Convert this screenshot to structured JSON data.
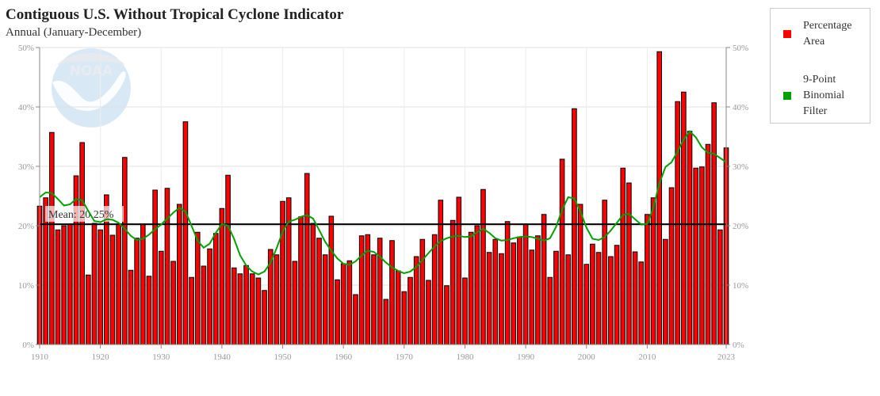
{
  "header": {
    "title": "Contiguous U.S. Without Tropical Cyclone Indicator",
    "subtitle": "Annual (January-December)"
  },
  "legend": {
    "items": [
      {
        "label": "Percentage Area",
        "color": "#ff0000"
      },
      {
        "label": "9-Point Binomial Filter",
        "color": "#00a000"
      }
    ]
  },
  "mean": {
    "label": "Mean: 20.25%",
    "value": 20.25
  },
  "watermark": {
    "text": "NOAA"
  },
  "chart_data": {
    "type": "bar",
    "title": "Contiguous U.S. Without Tropical Cyclone Indicator",
    "subtitle": "Annual (January-December)",
    "xlabel": "",
    "ylabel": "",
    "ylim": [
      0,
      50
    ],
    "xlim": [
      1910,
      2023
    ],
    "y_ticks": [
      "0%",
      "10%",
      "20%",
      "30%",
      "40%",
      "50%"
    ],
    "x_ticks": [
      "1910",
      "1920",
      "1930",
      "1940",
      "1950",
      "1960",
      "1970",
      "1980",
      "1990",
      "2000",
      "2010",
      "2023"
    ],
    "grid": true,
    "legend_position": "right",
    "mean": 20.25,
    "x": [
      1910,
      1911,
      1912,
      1913,
      1914,
      1915,
      1916,
      1917,
      1918,
      1919,
      1920,
      1921,
      1922,
      1923,
      1924,
      1925,
      1926,
      1927,
      1928,
      1929,
      1930,
      1931,
      1932,
      1933,
      1934,
      1935,
      1936,
      1937,
      1938,
      1939,
      1940,
      1941,
      1942,
      1943,
      1944,
      1945,
      1946,
      1947,
      1948,
      1949,
      1950,
      1951,
      1952,
      1953,
      1954,
      1955,
      1956,
      1957,
      1958,
      1959,
      1960,
      1961,
      1962,
      1963,
      1964,
      1965,
      1966,
      1967,
      1968,
      1969,
      1970,
      1971,
      1972,
      1973,
      1974,
      1975,
      1976,
      1977,
      1978,
      1979,
      1980,
      1981,
      1982,
      1983,
      1984,
      1985,
      1986,
      1987,
      1988,
      1989,
      1990,
      1991,
      1992,
      1993,
      1994,
      1995,
      1996,
      1997,
      1998,
      1999,
      2000,
      2001,
      2002,
      2003,
      2004,
      2005,
      2006,
      2007,
      2008,
      2009,
      2010,
      2011,
      2012,
      2013,
      2014,
      2015,
      2016,
      2017,
      2018,
      2019,
      2020,
      2021,
      2022,
      2023
    ],
    "series": [
      {
        "name": "Percentage Area",
        "type": "bar",
        "color": "#ff0000",
        "values": [
          23.3,
          24.7,
          35.7,
          19.3,
          20.0,
          20.3,
          28.4,
          34.0,
          11.7,
          20.4,
          19.3,
          25.2,
          18.4,
          20.3,
          31.5,
          12.5,
          17.9,
          20.3,
          11.5,
          26.0,
          15.7,
          26.3,
          14.0,
          23.6,
          37.5,
          11.3,
          18.9,
          13.2,
          16.1,
          18.7,
          22.9,
          28.5,
          12.9,
          11.9,
          13.3,
          11.9,
          11.2,
          9.1,
          16.0,
          15.1,
          24.1,
          24.7,
          14.0,
          21.5,
          28.8,
          20.4,
          17.9,
          15.1,
          21.6,
          10.9,
          13.6,
          14.1,
          8.4,
          18.3,
          18.5,
          15.1,
          17.9,
          7.6,
          17.5,
          12.4,
          8.9,
          11.3,
          14.8,
          17.7,
          10.8,
          18.5,
          24.3,
          9.9,
          20.9,
          24.8,
          11.2,
          18.9,
          20.0,
          26.1,
          15.5,
          17.7,
          15.3,
          20.7,
          17.1,
          18.1,
          20.3,
          15.9,
          18.3,
          21.9,
          11.3,
          15.7,
          31.2,
          15.1,
          39.7,
          23.6,
          13.5,
          16.9,
          15.5,
          24.3,
          14.8,
          16.7,
          29.7,
          27.2,
          15.6,
          13.9,
          21.9,
          24.7,
          49.3,
          17.7,
          26.4,
          40.9,
          42.5,
          35.9,
          29.7,
          29.9,
          33.7,
          40.7,
          19.3,
          33.1
        ]
      },
      {
        "name": "9-Point Binomial Filter",
        "type": "line",
        "color": "#00a000",
        "values": [
          24.8,
          25.6,
          25.5,
          24.5,
          23.4,
          23.6,
          24.5,
          24.3,
          22.5,
          20.8,
          20.6,
          21.1,
          21.0,
          20.5,
          19.5,
          18.3,
          17.6,
          17.8,
          18.5,
          19.4,
          20.2,
          21.2,
          22.2,
          23.0,
          22.4,
          20.0,
          17.5,
          16.3,
          17.0,
          18.8,
          20.3,
          20.0,
          17.8,
          15.0,
          13.3,
          12.3,
          11.8,
          12.3,
          13.8,
          16.2,
          19.0,
          20.7,
          21.0,
          21.5,
          21.8,
          21.2,
          19.3,
          17.3,
          15.8,
          14.5,
          13.6,
          13.4,
          14.0,
          15.0,
          15.8,
          15.6,
          14.8,
          13.8,
          13.0,
          12.4,
          12.0,
          12.3,
          13.1,
          14.2,
          15.4,
          16.5,
          17.4,
          17.9,
          18.2,
          18.3,
          18.1,
          18.2,
          18.9,
          19.5,
          18.8,
          17.9,
          17.5,
          17.6,
          17.9,
          18.1,
          18.2,
          18.1,
          17.8,
          17.5,
          17.9,
          19.8,
          22.7,
          24.8,
          24.6,
          22.4,
          19.7,
          17.8,
          17.6,
          18.1,
          19.2,
          20.5,
          21.8,
          22.0,
          21.1,
          20.2,
          20.3,
          23.0,
          27.1,
          29.9,
          30.7,
          32.5,
          34.5,
          35.9,
          34.9,
          33.2,
          32.3,
          32.1,
          31.4,
          30.7
        ]
      }
    ]
  }
}
